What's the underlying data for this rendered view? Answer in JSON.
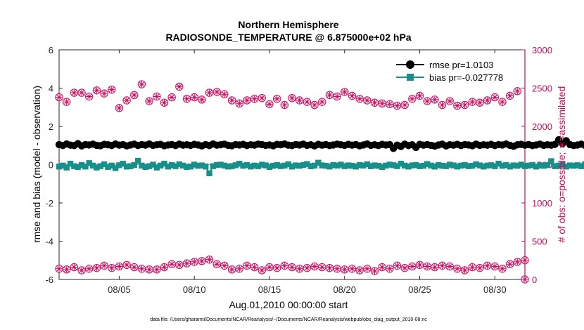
{
  "chart_data": {
    "type": "line",
    "title": [
      "Northern Hemisphere",
      "RADIOSONDE_TEMPERATURE @ 6.875000e+02 hPa"
    ],
    "xlabel": "Aug.01,2010 00:00:00 start",
    "ylabel_left": "rmse and bias (model - observation)",
    "ylabel_right": "# of obs: o=possible; ∗=assimilated",
    "footnote": "data file: /Users/gharamti/Documents/NCAR/Reanalysis/~/Documents/NCAR/Reanalysis/webpub/obs_diag_output_2010-08.nc",
    "xlim": [
      1.0,
      32.0
    ],
    "xticks": [
      5,
      10,
      15,
      20,
      25,
      30
    ],
    "xtick_labels": [
      "08/05",
      "08/10",
      "08/15",
      "08/20",
      "08/25",
      "08/30"
    ],
    "ylim_left": [
      -6,
      6
    ],
    "yticks_left": [
      -6,
      -4,
      -2,
      0,
      2,
      4,
      6
    ],
    "ytick_labels_left": [
      "-6",
      "-4",
      "-2",
      "0",
      "2",
      "4",
      "6"
    ],
    "ylim_right": [
      0,
      3000
    ],
    "yticks_right": [
      0,
      500,
      1000,
      1500,
      2000,
      2500,
      3000
    ],
    "ytick_labels_right": [
      "0",
      "500",
      "1000",
      "1500",
      "2000",
      "2500",
      "3000"
    ],
    "colors": {
      "rmse": "#000000",
      "bias": "#178f8a",
      "obs": "#cc0a5e",
      "zero_line": "#9a9a9a"
    },
    "legend_position": "top-right",
    "time_step_days": 0.25,
    "series": [
      {
        "name": "rmse pr=1.0103",
        "axis": "left",
        "marker": "filled-circle",
        "values": [
          1.05,
          1.0,
          1.08,
          1.02,
          1.0,
          1.1,
          0.98,
          1.05,
          1.03,
          1.07,
          1.01,
          0.99,
          1.06,
          1.04,
          1.0,
          1.08,
          1.02,
          1.05,
          0.98,
          1.03,
          1.07,
          1.0,
          1.05,
          1.02,
          1.08,
          1.01,
          1.04,
          1.06,
          0.99,
          1.03,
          1.05,
          1.0,
          1.07,
          1.02,
          1.04,
          1.01,
          1.06,
          1.03,
          0.98,
          1.05,
          1.0,
          1.08,
          1.02,
          1.04,
          1.07,
          1.01,
          0.99,
          1.05,
          1.03,
          1.06,
          1.0,
          1.04,
          1.02,
          1.07,
          1.05,
          1.01,
          1.03,
          0.99,
          1.06,
          1.04,
          1.08,
          1.02,
          1.0,
          1.05,
          1.03,
          1.07,
          1.01,
          1.04,
          0.98,
          1.06,
          1.02,
          1.05,
          1.0,
          1.03,
          1.07,
          1.04,
          1.01,
          1.06,
          1.02,
          1.05,
          0.99,
          1.03,
          1.08,
          1.01,
          1.04,
          1.0,
          1.06,
          1.03,
          1.05,
          0.85,
          1.02,
          0.95,
          1.07,
          1.0,
          1.04,
          0.9,
          1.06,
          1.02,
          1.05,
          1.01,
          0.97,
          1.03,
          1.07,
          0.98,
          1.04,
          1.02,
          1.06,
          1.0,
          1.05,
          1.03,
          0.99,
          1.07,
          1.01,
          1.04,
          1.02,
          1.06,
          1.0,
          1.05,
          1.03,
          1.08,
          1.01,
          0.96,
          1.04,
          1.06,
          1.02,
          1.05,
          1.0,
          1.03,
          1.07,
          1.01,
          1.04,
          1.02,
          1.06,
          1.3,
          1.1,
          1.25,
          1.05,
          1.0,
          1.03,
          1.07,
          1.01,
          1.04,
          1.02,
          1.06,
          1.0,
          1.05,
          1.03,
          1.08,
          1.01,
          1.04,
          1.02,
          1.06,
          1.0,
          1.05,
          1.03,
          1.07,
          1.01,
          1.04,
          1.02,
          1.06,
          1.0,
          1.05,
          1.03,
          0.99,
          1.07,
          1.01,
          1.04,
          1.02,
          1.06,
          1.0,
          1.05,
          1.03,
          1.07,
          1.01,
          1.04,
          0.98,
          1.06,
          1.02,
          1.05,
          1.0,
          1.03,
          1.07,
          1.01,
          1.04,
          1.02,
          1.06,
          1.0,
          1.05,
          1.03,
          1.08,
          1.01,
          1.04,
          1.02,
          1.06,
          1.0,
          1.05,
          1.03,
          1.07,
          1.01,
          1.04,
          1.02,
          1.06,
          1.0,
          1.05,
          1.03,
          1.07,
          1.01,
          1.04,
          1.02,
          1.06,
          1.0,
          1.05,
          1.03,
          1.08,
          1.01,
          1.04,
          1.02,
          1.06,
          1.0,
          1.05,
          1.03,
          1.07,
          1.01,
          1.04,
          1.02,
          1.06,
          1.0,
          1.05,
          1.03,
          1.15
        ]
      },
      {
        "name": "bias pr=-0.027778",
        "axis": "left",
        "marker": "filled-square",
        "values": [
          -0.1,
          -0.05,
          -0.15,
          0.05,
          -0.08,
          -0.12,
          -0.02,
          -0.1,
          0.08,
          -0.05,
          -0.15,
          -0.08,
          0.02,
          -0.12,
          -0.05,
          -0.18,
          -0.03,
          0.05,
          -0.1,
          -0.08,
          -0.02,
          0.2,
          -0.05,
          -0.12,
          -0.08,
          0.0,
          -0.15,
          -0.05,
          0.05,
          -0.1,
          -0.02,
          -0.08,
          0.02,
          -0.05,
          -0.12,
          -0.1,
          0.0,
          -0.06,
          -0.04,
          -0.1,
          -0.45,
          -0.08,
          -0.02,
          0.0,
          -0.05,
          -0.1,
          -0.08,
          -0.03,
          0.05,
          -0.06,
          -0.02,
          -0.1,
          -0.05,
          -0.08,
          0.0,
          -0.04,
          -0.12,
          -0.06,
          -0.02,
          -0.08,
          -0.05,
          0.02,
          -0.1,
          -0.04,
          -0.06,
          -0.02,
          0.03,
          -0.08,
          -0.05,
          0.1,
          -0.04,
          -0.06,
          -0.1,
          -0.02,
          -0.05,
          0.0,
          -0.08,
          -0.04,
          -0.06,
          -0.1,
          -0.02,
          -0.05,
          0.02,
          -0.08,
          -0.04,
          -0.06,
          -0.12,
          -0.05,
          0.0,
          -0.03,
          -0.08,
          0.05,
          -0.05,
          -0.1,
          -0.04,
          -0.02,
          -0.08,
          -0.06,
          0.03,
          -0.05,
          -0.1,
          -0.02,
          -0.06,
          -0.08,
          0.0,
          -0.04,
          -0.1,
          -0.05,
          -0.02,
          -0.08,
          -0.06,
          0.02,
          -0.04,
          -0.1,
          -0.05,
          -0.03,
          -0.08,
          0.05,
          -0.06,
          -0.02,
          -0.1,
          -0.04,
          -0.06,
          0.0,
          -0.08,
          -0.05,
          -0.02,
          -0.1,
          -0.04,
          -0.06,
          -0.02,
          0.18,
          -0.08,
          -0.05,
          0.0,
          -0.1,
          -0.04,
          -0.06,
          -0.03,
          -0.08,
          0.02,
          -0.05,
          -0.1,
          -0.04,
          -0.06,
          -0.02,
          -0.08,
          -0.05,
          0.03,
          -0.1,
          -0.04,
          -0.06,
          -0.02,
          -0.08,
          0.0,
          -0.05,
          -0.1,
          -0.04,
          -0.06,
          -0.02,
          0.05,
          -0.08,
          -0.05,
          -0.1,
          -0.04,
          -0.06,
          -0.02,
          -0.08,
          0.0,
          -0.05,
          -0.1,
          -0.04,
          -0.06,
          -0.02,
          -0.08,
          -0.05,
          0.02,
          -0.1,
          -0.04,
          -0.06,
          -0.02,
          -0.08,
          -0.05,
          0.0,
          -0.1,
          -0.04,
          -0.06,
          0.02,
          -0.08,
          -0.05,
          -0.1,
          -0.04,
          -0.06,
          -0.02,
          0.18,
          -0.08,
          -0.05,
          -0.22,
          -0.04,
          -0.06,
          -0.02,
          -0.08,
          0.05,
          -0.05,
          -0.1,
          -0.04,
          -0.06,
          -0.02,
          -0.08,
          0.0,
          -0.05,
          -0.1,
          -0.04,
          -0.06,
          -0.02,
          0.05,
          -0.08,
          -0.05,
          -0.1,
          -0.04,
          -0.06,
          -0.02,
          -0.08,
          0.0,
          -0.05,
          -0.1,
          -0.04,
          -0.06,
          -0.02,
          -0.08,
          -0.05,
          0.02,
          -0.1,
          -0.04,
          -0.06,
          -0.3
        ]
      },
      {
        "name": "possible",
        "axis": "right",
        "marker": "open-circle",
        "x": [
          1.0,
          1.5,
          2.0,
          2.5,
          3.0,
          3.5,
          4.0,
          4.5,
          5.0,
          5.5,
          6.0,
          6.5,
          7.0,
          7.5,
          8.0,
          8.5,
          9.0,
          9.5,
          10.0,
          10.5,
          11.0,
          11.5,
          12.0,
          12.5,
          13.0,
          13.5,
          14.0,
          14.5,
          15.0,
          15.5,
          16.0,
          16.5,
          17.0,
          17.5,
          18.0,
          18.5,
          19.0,
          19.5,
          20.0,
          20.5,
          21.0,
          21.5,
          22.0,
          22.5,
          23.0,
          23.5,
          24.0,
          24.5,
          25.0,
          25.5,
          26.0,
          26.5,
          27.0,
          27.5,
          28.0,
          28.5,
          29.0,
          29.5,
          30.0,
          30.5,
          31.0,
          31.5,
          32.0
        ],
        "values": [
          2380,
          2320,
          2440,
          2440,
          2390,
          2470,
          2430,
          2480,
          2240,
          2340,
          2410,
          2550,
          2330,
          2390,
          2310,
          2380,
          2520,
          2360,
          2380,
          2350,
          2440,
          2450,
          2420,
          2340,
          2300,
          2340,
          2360,
          2370,
          2290,
          2360,
          2280,
          2370,
          2340,
          2320,
          2280,
          2320,
          2410,
          2390,
          2450,
          2400,
          2360,
          2340,
          2310,
          2300,
          2290,
          2270,
          2280,
          2360,
          2400,
          2330,
          2350,
          2280,
          2330,
          2270,
          2280,
          2320,
          2310,
          2340,
          2380,
          2320,
          2400,
          2460,
          0
        ],
        "values_low": [
          140,
          130,
          160,
          120,
          140,
          150,
          180,
          150,
          170,
          190,
          160,
          140,
          130,
          130,
          160,
          200,
          190,
          210,
          230,
          240,
          260,
          200,
          180,
          130,
          140,
          180,
          160,
          120,
          160,
          150,
          180,
          160,
          140,
          150,
          170,
          160,
          150,
          140,
          130,
          140,
          120,
          140,
          110,
          160,
          140,
          180,
          150,
          170,
          190,
          170,
          160,
          180,
          170,
          140,
          120,
          160,
          150,
          180,
          170,
          140,
          200,
          230,
          250
        ]
      },
      {
        "name": "assimilated",
        "axis": "right",
        "marker": "asterisk",
        "x": [
          1.0,
          1.5,
          2.0,
          2.5,
          3.0,
          3.5,
          4.0,
          4.5,
          5.0,
          5.5,
          6.0,
          6.5,
          7.0,
          7.5,
          8.0,
          8.5,
          9.0,
          9.5,
          10.0,
          10.5,
          11.0,
          11.5,
          12.0,
          12.5,
          13.0,
          13.5,
          14.0,
          14.5,
          15.0,
          15.5,
          16.0,
          16.5,
          17.0,
          17.5,
          18.0,
          18.5,
          19.0,
          19.5,
          20.0,
          20.5,
          21.0,
          21.5,
          22.0,
          22.5,
          23.0,
          23.5,
          24.0,
          24.5,
          25.0,
          25.5,
          26.0,
          26.5,
          27.0,
          27.5,
          28.0,
          28.5,
          29.0,
          29.5,
          30.0,
          30.5,
          31.0,
          31.5,
          32.0
        ],
        "values": [
          2380,
          2320,
          2440,
          2440,
          2390,
          2470,
          2430,
          2480,
          2240,
          2340,
          2410,
          2550,
          2330,
          2390,
          2310,
          2380,
          2520,
          2360,
          2380,
          2350,
          2440,
          2450,
          2420,
          2340,
          2300,
          2340,
          2360,
          2370,
          2290,
          2360,
          2280,
          2370,
          2340,
          2320,
          2280,
          2320,
          2410,
          2390,
          2450,
          2400,
          2360,
          2340,
          2310,
          2300,
          2290,
          2270,
          2280,
          2360,
          2400,
          2330,
          2350,
          2280,
          2330,
          2270,
          2280,
          2320,
          2310,
          2340,
          2380,
          2320,
          2400,
          2460,
          0
        ],
        "values_low": [
          140,
          130,
          160,
          120,
          140,
          150,
          180,
          150,
          170,
          190,
          160,
          140,
          130,
          130,
          160,
          200,
          190,
          210,
          230,
          240,
          260,
          200,
          180,
          130,
          140,
          180,
          160,
          120,
          160,
          150,
          180,
          160,
          140,
          150,
          170,
          160,
          150,
          140,
          130,
          140,
          120,
          140,
          110,
          160,
          140,
          180,
          150,
          170,
          190,
          170,
          160,
          180,
          170,
          140,
          120,
          160,
          150,
          180,
          170,
          140,
          200,
          230,
          250
        ]
      }
    ]
  }
}
